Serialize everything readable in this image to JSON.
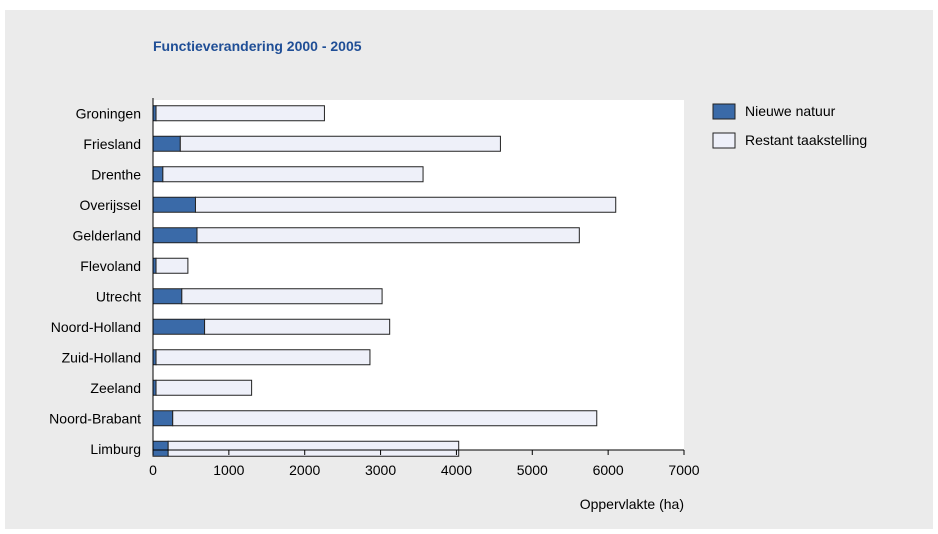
{
  "chart_data": {
    "type": "bar",
    "orientation": "horizontal",
    "stacked": true,
    "title": "Functieverandering 2000 - 2005",
    "xlabel": "Oppervlakte (ha)",
    "ylabel": "",
    "xlim": [
      0,
      7000
    ],
    "xticks": [
      0,
      1000,
      2000,
      3000,
      4000,
      5000,
      6000,
      7000
    ],
    "grid": false,
    "legend_position": "right",
    "categories": [
      "Groningen",
      "Friesland",
      "Drenthe",
      "Overijssel",
      "Gelderland",
      "Flevoland",
      "Utrecht",
      "Noord-Holland",
      "Zuid-Holland",
      "Zeeland",
      "Noord-Brabant",
      "Limburg"
    ],
    "series": [
      {
        "name": "Nieuwe natuur",
        "color": "#3a6aa8",
        "values": [
          40,
          360,
          130,
          560,
          580,
          40,
          380,
          680,
          40,
          40,
          260,
          200
        ]
      },
      {
        "name": "Restant taakstelling",
        "color": "#eef0f9",
        "values": [
          2220,
          4220,
          3430,
          5540,
          5040,
          420,
          2640,
          2440,
          2820,
          1260,
          5590,
          3830
        ]
      }
    ]
  }
}
